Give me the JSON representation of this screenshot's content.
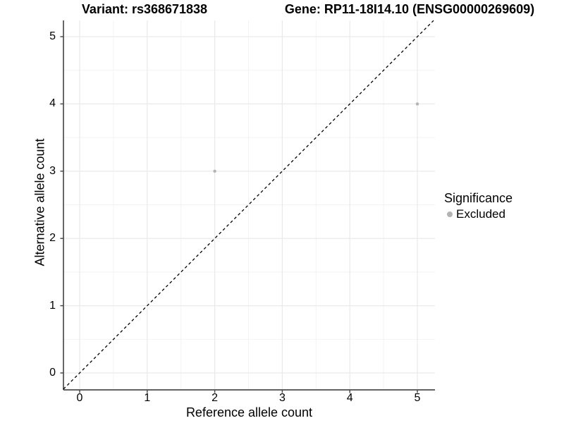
{
  "titles": {
    "variant": "Variant: rs368671838",
    "gene": "Gene: RP11-18I14.10 (ENSG00000269609)"
  },
  "legend": {
    "title": "Significance",
    "items": [
      {
        "label": "Excluded",
        "color": "#b3b3b3"
      }
    ]
  },
  "colors": {
    "point": "#b3b3b3",
    "axis_line": "#4d4d4d",
    "tick_mark": "#4d4d4d",
    "grid_major": "#e9e9e9",
    "grid_minor": "#f2f2f2",
    "identity_line": "#000000",
    "background": "#ffffff"
  },
  "chart_data": {
    "type": "scatter",
    "title": "Variant: rs368671838 | Gene: RP11-18I14.10 (ENSG00000269609)",
    "xlabel": "Reference allele count",
    "ylabel": "Alternative allele count",
    "xlim": [
      -0.25,
      5.25
    ],
    "ylim": [
      -0.25,
      5.25
    ],
    "x_ticks": [
      0,
      1,
      2,
      3,
      4,
      5
    ],
    "y_ticks": [
      0,
      1,
      2,
      3,
      4,
      5
    ],
    "minor_ticks": [
      0.5,
      1.5,
      2.5,
      3.5,
      4.5
    ],
    "grid": true,
    "legend_position": "right",
    "series": [
      {
        "name": "Excluded",
        "color": "#b3b3b3",
        "x": [
          2,
          5
        ],
        "y": [
          3,
          4
        ]
      }
    ],
    "identity_line": {
      "slope": 1,
      "intercept": 0,
      "style": "dashed",
      "color": "#000000"
    }
  }
}
